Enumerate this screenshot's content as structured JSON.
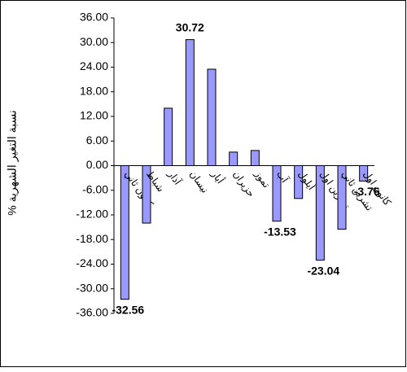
{
  "chart_data": {
    "type": "bar",
    "y_axis_label": "% نسبة التغير الشهرية",
    "categories": [
      "كانون ثاني",
      "شباط",
      "آذار",
      "نيسان",
      "أيار",
      "حزيران",
      "تموز",
      "آب",
      "أيلول",
      "تشرين اول",
      "تشرين ثاني",
      "كانون اول"
    ],
    "values": [
      -32.56,
      -14.0,
      14.0,
      30.72,
      23.5,
      3.3,
      3.7,
      -13.53,
      -8.0,
      -23.04,
      -15.5,
      -3.76
    ],
    "value_labels": [
      "-32.56",
      null,
      null,
      "30.72",
      null,
      null,
      null,
      "-13.53",
      null,
      "-23.04",
      null,
      "-3.76"
    ],
    "color": "#9999ff",
    "ylim": [
      -36,
      36
    ],
    "yticks": [
      {
        "value": -36,
        "label": "-36.00"
      },
      {
        "value": -30,
        "label": "-30.00"
      },
      {
        "value": -24,
        "label": "-24.00"
      },
      {
        "value": -18,
        "label": "-18.00"
      },
      {
        "value": -12,
        "label": "-12.00"
      },
      {
        "value": -6,
        "label": "-6.00"
      },
      {
        "value": 0,
        "label": "0.00"
      },
      {
        "value": 6,
        "label": "6.00"
      },
      {
        "value": 12,
        "label": "12.00"
      },
      {
        "value": 18,
        "label": "18.00"
      },
      {
        "value": 24,
        "label": "24.00"
      },
      {
        "value": 30,
        "label": "30.00"
      },
      {
        "value": 36,
        "label": "36.00"
      }
    ],
    "grid": false
  }
}
